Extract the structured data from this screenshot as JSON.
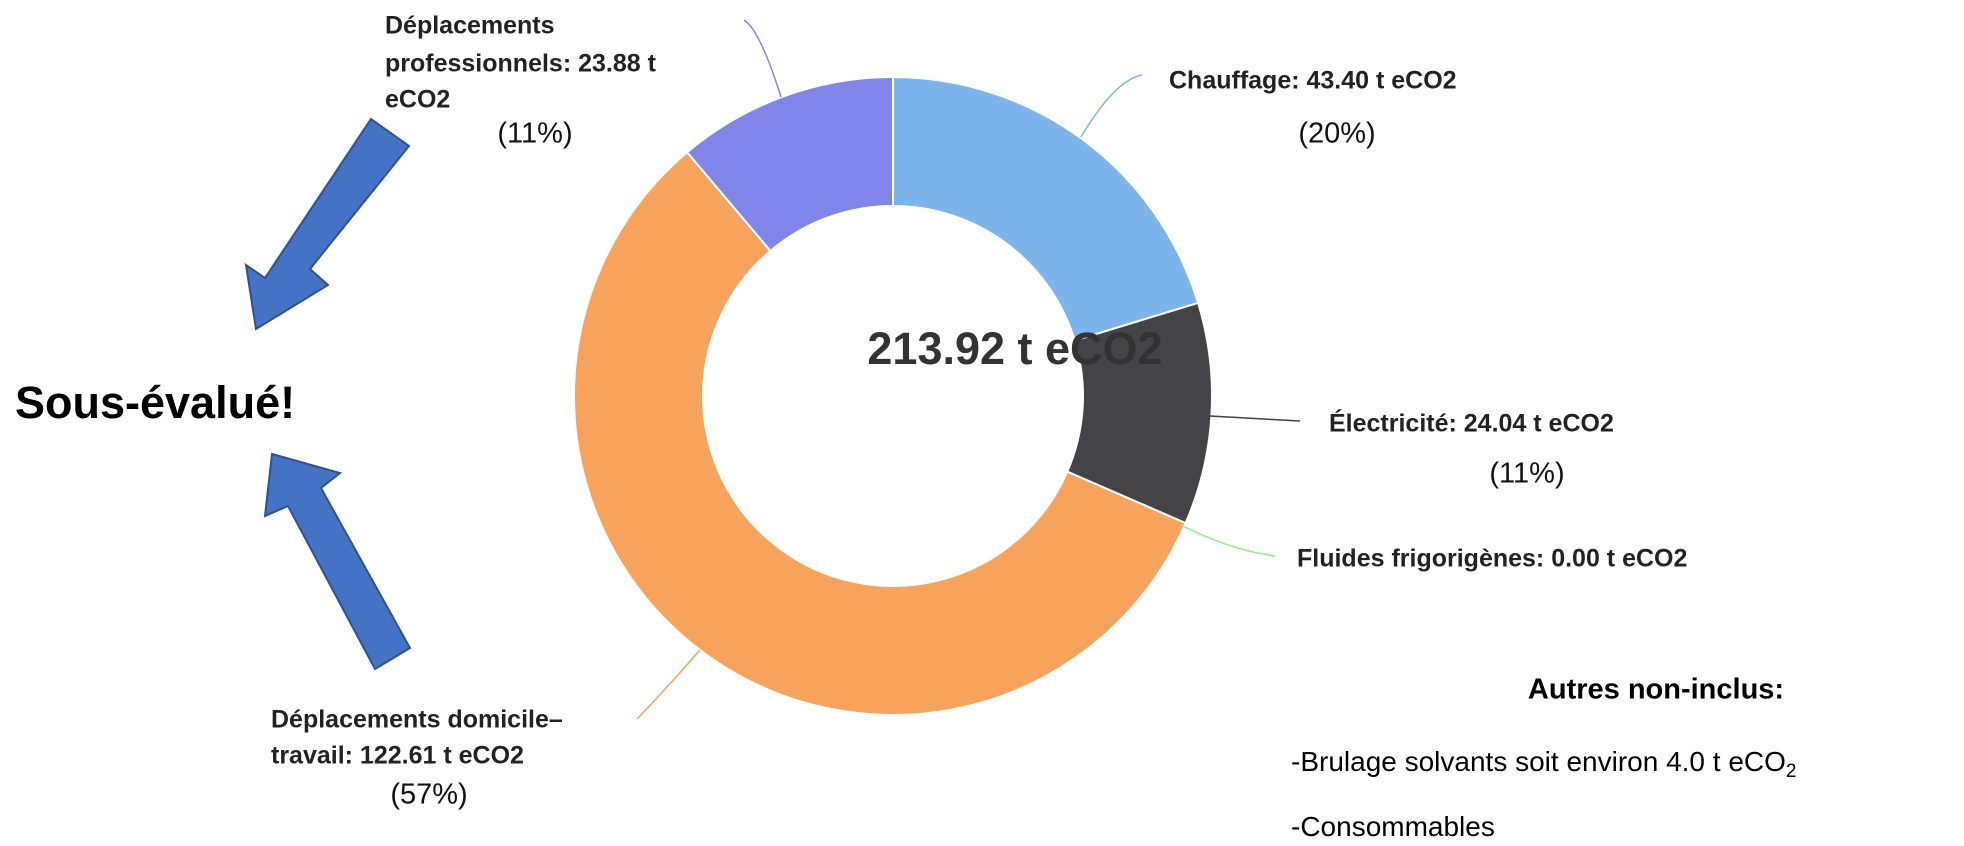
{
  "chart_data": {
    "type": "donut",
    "center_label": "213.92 t eCO2",
    "total": 213.92,
    "categories": [
      "Chauffage",
      "Électricité",
      "Fluides frigorigènes",
      "Déplacements domicile-travail",
      "Déplacements professionnels"
    ],
    "values": [
      43.4,
      24.04,
      0.0,
      122.61,
      23.88
    ],
    "colors": [
      "#7cb5ec",
      "#434348",
      "#90ed7d",
      "#f7a35c",
      "#8085e9"
    ],
    "labels": [
      [
        "Chauffage: 43.40 t eCO2"
      ],
      [
        "Électricité: 24.04 t eCO2"
      ],
      [
        "Fluides frigorigènes: 0.00 t eCO2"
      ],
      [
        "Déplacements domicile–",
        "travail: 122.61 t eCO2"
      ],
      [
        "Déplacements",
        "professionnels: 23.88 t",
        "eCO2"
      ]
    ],
    "percent_labels": [
      "(20%)",
      "(11%)",
      null,
      "(57%)",
      "(11%)"
    ],
    "annotation": "Sous-évalué!",
    "notes": {
      "title": "Autres non-inclus:",
      "items": [
        {
          "text": "-Brulage solvants soit environ 4.0 t eCO",
          "subscript": "2"
        },
        {
          "text": "-Consommables"
        }
      ]
    }
  }
}
